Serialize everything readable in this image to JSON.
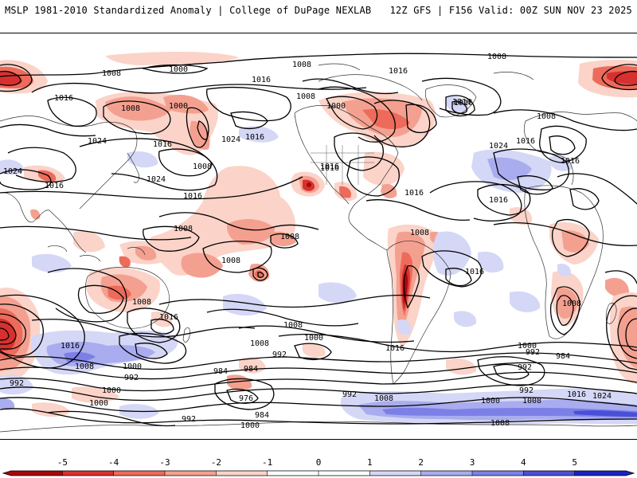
{
  "header": {
    "title_left": "MSLP 1981-2010 Standardized Anomaly | College of DuPage NEXLAB",
    "title_right": "12Z GFS | F156 Valid: 00Z SUN NOV 23 2025"
  },
  "colors": {
    "neg5": "#a8070b",
    "neg4": "#d7312f",
    "neg3": "#ec6b5b",
    "neg2": "#f4a090",
    "neg1": "#fbd3c8",
    "pos1": "#d5d7f6",
    "pos2": "#a9acee",
    "pos3": "#7c80e6",
    "pos4": "#4a4fd9",
    "pos5": "#1c20c4",
    "contour": "#000000",
    "coast": "#333333"
  },
  "colorbar": {
    "ticks": [
      "-5",
      "-4",
      "-3",
      "-2",
      "-1",
      "0",
      "1",
      "2",
      "3",
      "4",
      "5"
    ]
  },
  "isobars": [
    {
      "id": "l1",
      "text": "1008"
    },
    {
      "id": "l2",
      "text": "1000"
    },
    {
      "id": "l3",
      "text": "1008"
    },
    {
      "id": "l4",
      "text": "1008"
    },
    {
      "id": "l5",
      "text": "1016"
    },
    {
      "id": "l6",
      "text": "1016"
    },
    {
      "id": "l7",
      "text": "1008"
    },
    {
      "id": "l8",
      "text": "1000"
    },
    {
      "id": "l9",
      "text": "1008"
    },
    {
      "id": "l10",
      "text": "1000"
    },
    {
      "id": "l11",
      "text": "1016"
    },
    {
      "id": "l12",
      "text": "1016"
    },
    {
      "id": "l13",
      "text": "1024"
    },
    {
      "id": "l14",
      "text": "1016"
    },
    {
      "id": "l15",
      "text": "1024"
    },
    {
      "id": "l16",
      "text": "1016"
    },
    {
      "id": "l17",
      "text": "1008"
    },
    {
      "id": "l18",
      "text": "1024"
    },
    {
      "id": "l19",
      "text": "1024"
    },
    {
      "id": "l20",
      "text": "1016"
    },
    {
      "id": "l21",
      "text": "1016"
    },
    {
      "id": "l22",
      "text": "1016"
    },
    {
      "id": "l23",
      "text": "1008"
    },
    {
      "id": "l24",
      "text": "1008"
    },
    {
      "id": "l25",
      "text": "1024"
    },
    {
      "id": "l26",
      "text": "1016"
    },
    {
      "id": "l27",
      "text": "1016"
    },
    {
      "id": "l28",
      "text": "1008"
    },
    {
      "id": "l29",
      "text": "1016"
    },
    {
      "id": "l30",
      "text": "1008"
    },
    {
      "id": "l31",
      "text": "1008"
    },
    {
      "id": "l32",
      "text": "1008"
    },
    {
      "id": "l33",
      "text": "1016"
    },
    {
      "id": "l34",
      "text": "1016"
    },
    {
      "id": "l35",
      "text": "1008"
    },
    {
      "id": "l36",
      "text": "1016"
    },
    {
      "id": "l37",
      "text": "1016"
    },
    {
      "id": "l38",
      "text": "1008"
    },
    {
      "id": "l39",
      "text": "1000"
    },
    {
      "id": "l40",
      "text": "992"
    },
    {
      "id": "l41",
      "text": "1016"
    },
    {
      "id": "l42",
      "text": "1008"
    },
    {
      "id": "l43",
      "text": "1000"
    },
    {
      "id": "l44",
      "text": "992"
    },
    {
      "id": "l45",
      "text": "984"
    },
    {
      "id": "l46",
      "text": "1008"
    },
    {
      "id": "l47",
      "text": "1016"
    },
    {
      "id": "l48",
      "text": "1016"
    },
    {
      "id": "l49",
      "text": "1000"
    },
    {
      "id": "l50",
      "text": "992"
    },
    {
      "id": "l51",
      "text": "984"
    },
    {
      "id": "l52",
      "text": "992"
    },
    {
      "id": "l53",
      "text": "1000"
    },
    {
      "id": "l54",
      "text": "992"
    },
    {
      "id": "l55",
      "text": "984"
    },
    {
      "id": "l56",
      "text": "976"
    },
    {
      "id": "l57",
      "text": "984"
    },
    {
      "id": "l58",
      "text": "992"
    },
    {
      "id": "l59",
      "text": "1000"
    },
    {
      "id": "l60",
      "text": "992"
    },
    {
      "id": "l61",
      "text": "1008"
    },
    {
      "id": "l62",
      "text": "1000"
    },
    {
      "id": "l63",
      "text": "1008"
    },
    {
      "id": "l64",
      "text": "1016"
    },
    {
      "id": "l65",
      "text": "1024"
    },
    {
      "id": "l66",
      "text": "1008"
    },
    {
      "id": "l67",
      "text": "1000"
    },
    {
      "id": "l68",
      "text": "992"
    }
  ]
}
